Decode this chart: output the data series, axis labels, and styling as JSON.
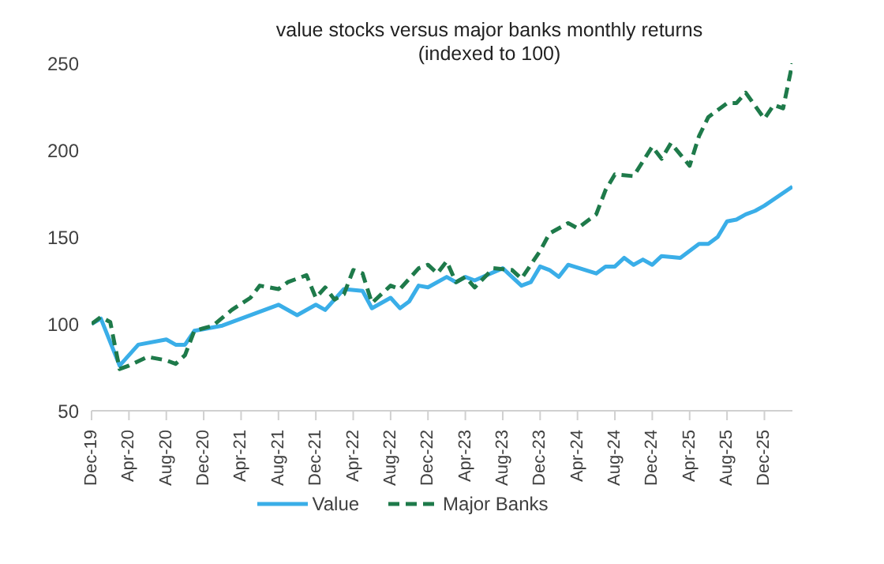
{
  "chart_data": {
    "type": "line",
    "title": "value stocks versus major banks monthly returns",
    "subtitle": "(indexed to 100)",
    "xlim": [
      "2019-12",
      "2026-03"
    ],
    "xticks": [
      {
        "value": "2019-12",
        "label": "Dec-19"
      },
      {
        "value": "2020-04",
        "label": "Apr-20"
      },
      {
        "value": "2020-08",
        "label": "Aug-20"
      },
      {
        "value": "2020-12",
        "label": "Dec-20"
      },
      {
        "value": "2021-04",
        "label": "Apr-21"
      },
      {
        "value": "2021-08",
        "label": "Aug-21"
      },
      {
        "value": "2021-12",
        "label": "Dec-21"
      },
      {
        "value": "2022-04",
        "label": "Apr-22"
      },
      {
        "value": "2022-08",
        "label": "Aug-22"
      },
      {
        "value": "2022-12",
        "label": "Dec-22"
      },
      {
        "value": "2023-04",
        "label": "Apr-23"
      },
      {
        "value": "2023-08",
        "label": "Aug-23"
      },
      {
        "value": "2023-12",
        "label": "Dec-23"
      },
      {
        "value": "2024-04",
        "label": "Apr-24"
      },
      {
        "value": "2024-08",
        "label": "Aug-24"
      },
      {
        "value": "2024-12",
        "label": "Dec-24"
      },
      {
        "value": "2025-04",
        "label": "Apr-25"
      },
      {
        "value": "2025-08",
        "label": "Aug-25"
      },
      {
        "value": "2025-12",
        "label": "Dec-25"
      }
    ],
    "ylim": [
      50,
      250
    ],
    "yticks": [
      50,
      100,
      150,
      200,
      250
    ],
    "legend": "bottom",
    "marker": "none",
    "series": [
      {
        "name": "Value",
        "color": "#3aaee8",
        "line_style": "solid",
        "x": [
          "2019-12",
          "2020-01",
          "2020-03",
          "2020-05",
          "2020-08",
          "2020-09",
          "2020-10",
          "2020-11",
          "2021-02",
          "2021-08",
          "2021-10",
          "2021-12",
          "2022-01",
          "2022-03",
          "2022-05",
          "2022-06",
          "2022-08",
          "2022-09",
          "2022-10",
          "2022-11",
          "2022-12",
          "2023-02",
          "2023-03",
          "2023-04",
          "2023-05",
          "2023-08",
          "2023-10",
          "2023-11",
          "2023-12",
          "2024-01",
          "2024-02",
          "2024-03",
          "2024-06",
          "2024-07",
          "2024-08",
          "2024-09",
          "2024-10",
          "2024-11",
          "2024-12",
          "2025-01",
          "2025-03",
          "2025-05",
          "2025-06",
          "2025-07",
          "2025-08",
          "2025-09",
          "2025-10",
          "2025-11",
          "2025-12",
          "2026-03"
        ],
        "values": [
          100,
          103,
          76,
          88,
          91,
          88,
          88,
          96,
          99,
          111,
          105,
          111,
          108,
          120,
          119,
          109,
          115,
          109,
          113,
          122,
          121,
          127,
          124,
          127,
          125,
          132,
          122,
          124,
          133,
          131,
          127,
          134,
          129,
          133,
          133,
          138,
          134,
          137,
          134,
          139,
          138,
          146,
          146,
          150,
          159,
          160,
          163,
          165,
          168,
          179
        ]
      },
      {
        "name": "Major Banks",
        "color": "#1e7a4a",
        "line_style": "dashed",
        "x": [
          "2019-12",
          "2020-01",
          "2020-02",
          "2020-03",
          "2020-04",
          "2020-06",
          "2020-08",
          "2020-09",
          "2020-10",
          "2020-11",
          "2021-01",
          "2021-03",
          "2021-05",
          "2021-06",
          "2021-08",
          "2021-09",
          "2021-11",
          "2021-12",
          "2022-01",
          "2022-02",
          "2022-03",
          "2022-04",
          "2022-05",
          "2022-06",
          "2022-08",
          "2022-09",
          "2022-11",
          "2022-12",
          "2023-01",
          "2023-02",
          "2023-03",
          "2023-04",
          "2023-05",
          "2023-07",
          "2023-09",
          "2023-10",
          "2023-12",
          "2024-01",
          "2024-03",
          "2024-04",
          "2024-06",
          "2024-07",
          "2024-08",
          "2024-10",
          "2024-12",
          "2025-01",
          "2025-02",
          "2025-04",
          "2025-05",
          "2025-06",
          "2025-08",
          "2025-09",
          "2025-10",
          "2025-12",
          "2026-01",
          "2026-02",
          "2026-03"
        ],
        "values": [
          100,
          104,
          101,
          74,
          76,
          81,
          79,
          77,
          82,
          96,
          99,
          108,
          115,
          122,
          120,
          124,
          128,
          115,
          121,
          114,
          117,
          131,
          129,
          112,
          122,
          120,
          132,
          134,
          129,
          136,
          124,
          127,
          121,
          132,
          131,
          126,
          142,
          152,
          158,
          155,
          163,
          177,
          186,
          185,
          202,
          195,
          204,
          191,
          208,
          219,
          227,
          227,
          233,
          218,
          226,
          224,
          250
        ]
      }
    ]
  }
}
